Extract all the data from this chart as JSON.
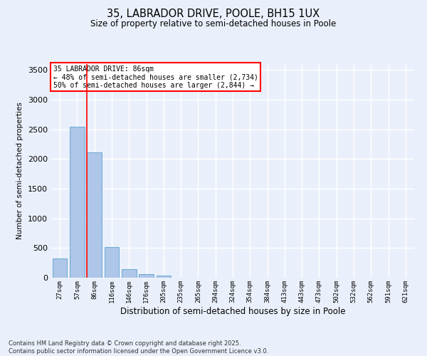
{
  "title1": "35, LABRADOR DRIVE, POOLE, BH15 1UX",
  "title2": "Size of property relative to semi-detached houses in Poole",
  "xlabel": "Distribution of semi-detached houses by size in Poole",
  "ylabel": "Number of semi-detached properties",
  "categories": [
    "27sqm",
    "57sqm",
    "86sqm",
    "116sqm",
    "146sqm",
    "176sqm",
    "205sqm",
    "235sqm",
    "265sqm",
    "294sqm",
    "324sqm",
    "354sqm",
    "384sqm",
    "413sqm",
    "443sqm",
    "473sqm",
    "502sqm",
    "532sqm",
    "562sqm",
    "591sqm",
    "621sqm"
  ],
  "values": [
    330,
    2540,
    2110,
    515,
    140,
    65,
    40,
    0,
    0,
    0,
    0,
    0,
    0,
    0,
    0,
    0,
    0,
    0,
    0,
    0,
    0
  ],
  "bar_color": "#aec6e8",
  "bar_edge_color": "#6aaad4",
  "red_line_x": 2,
  "annotation_title": "35 LABRADOR DRIVE: 86sqm",
  "annotation_line1": "← 48% of semi-detached houses are smaller (2,734)",
  "annotation_line2": "50% of semi-detached houses are larger (2,844) →",
  "ylim": [
    0,
    3600
  ],
  "yticks": [
    0,
    500,
    1000,
    1500,
    2000,
    2500,
    3000,
    3500
  ],
  "background_color": "#eaf0fb",
  "grid_color": "#ffffff",
  "footer1": "Contains HM Land Registry data © Crown copyright and database right 2025.",
  "footer2": "Contains public sector information licensed under the Open Government Licence v3.0."
}
